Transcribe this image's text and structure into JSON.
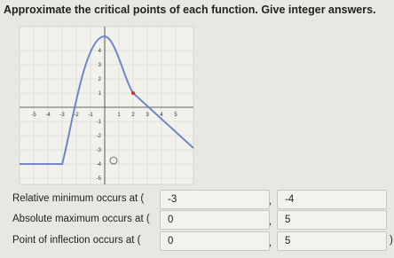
{
  "question": "Approximate the critical points of each function. Give integer answers.",
  "graph": {
    "x_tick_labels": [
      "-5",
      "-4",
      "-3",
      "-2",
      "-1",
      "1",
      "2",
      "3",
      "4",
      "5"
    ],
    "y_tick_labels": [
      "4",
      "3",
      "2",
      "1",
      "-1",
      "-2",
      "-3",
      "-4",
      "-5"
    ]
  },
  "answers": [
    {
      "label": "Relative minimum occurs at (",
      "x": "-3",
      "separator": ",",
      "y": "-4"
    },
    {
      "label": "Absolute maximum occurs at (",
      "x": "0",
      "separator": ",",
      "y": "5"
    },
    {
      "label": "Point of inflection occurs at (",
      "x": "0",
      "separator": ",",
      "y": "5",
      "close": ")"
    }
  ]
}
